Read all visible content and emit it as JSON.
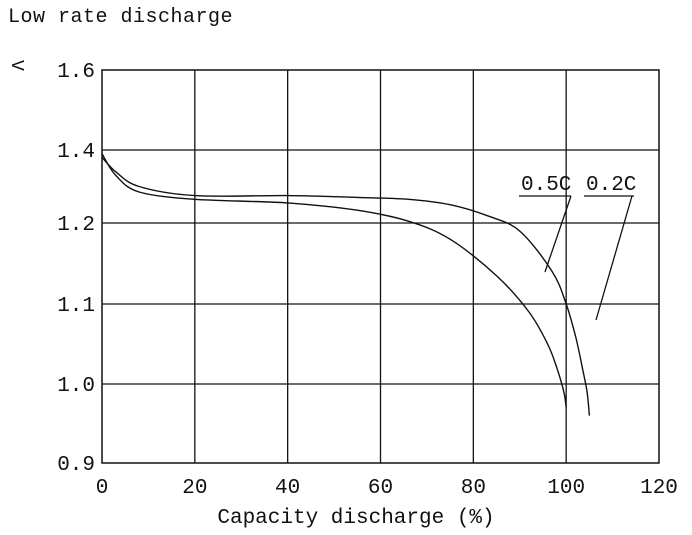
{
  "chart_data": {
    "type": "line",
    "title": "Low rate discharge",
    "xlabel": "Capacity discharge (%)",
    "ylabel": "V",
    "xlim": [
      0,
      120
    ],
    "x_ticks": [
      "0",
      "20",
      "40",
      "60",
      "80",
      "100",
      "120"
    ],
    "y_ticks": [
      "0.9",
      "1.0",
      "1.1",
      "1.2",
      "1.4",
      "1.6"
    ],
    "grid": true,
    "legend": "callout labels near curves (right side)",
    "series": [
      {
        "name": "0.5C",
        "x": [
          0,
          3,
          8,
          20,
          40,
          55,
          66,
          75,
          85,
          92,
          96,
          98,
          99.5,
          100
        ],
        "y": [
          1.39,
          1.33,
          1.285,
          1.265,
          1.255,
          1.235,
          1.205,
          1.18,
          1.135,
          1.09,
          1.05,
          1.02,
          0.99,
          0.97
        ]
      },
      {
        "name": "0.2C",
        "x": [
          0,
          3,
          8,
          20,
          40,
          55,
          66,
          75,
          83,
          90,
          97,
          100,
          102,
          103.5,
          104.5,
          105
        ],
        "y": [
          1.38,
          1.34,
          1.3,
          1.275,
          1.275,
          1.27,
          1.265,
          1.25,
          1.22,
          1.19,
          1.14,
          1.1,
          1.06,
          1.02,
          0.99,
          0.96
        ]
      }
    ]
  }
}
